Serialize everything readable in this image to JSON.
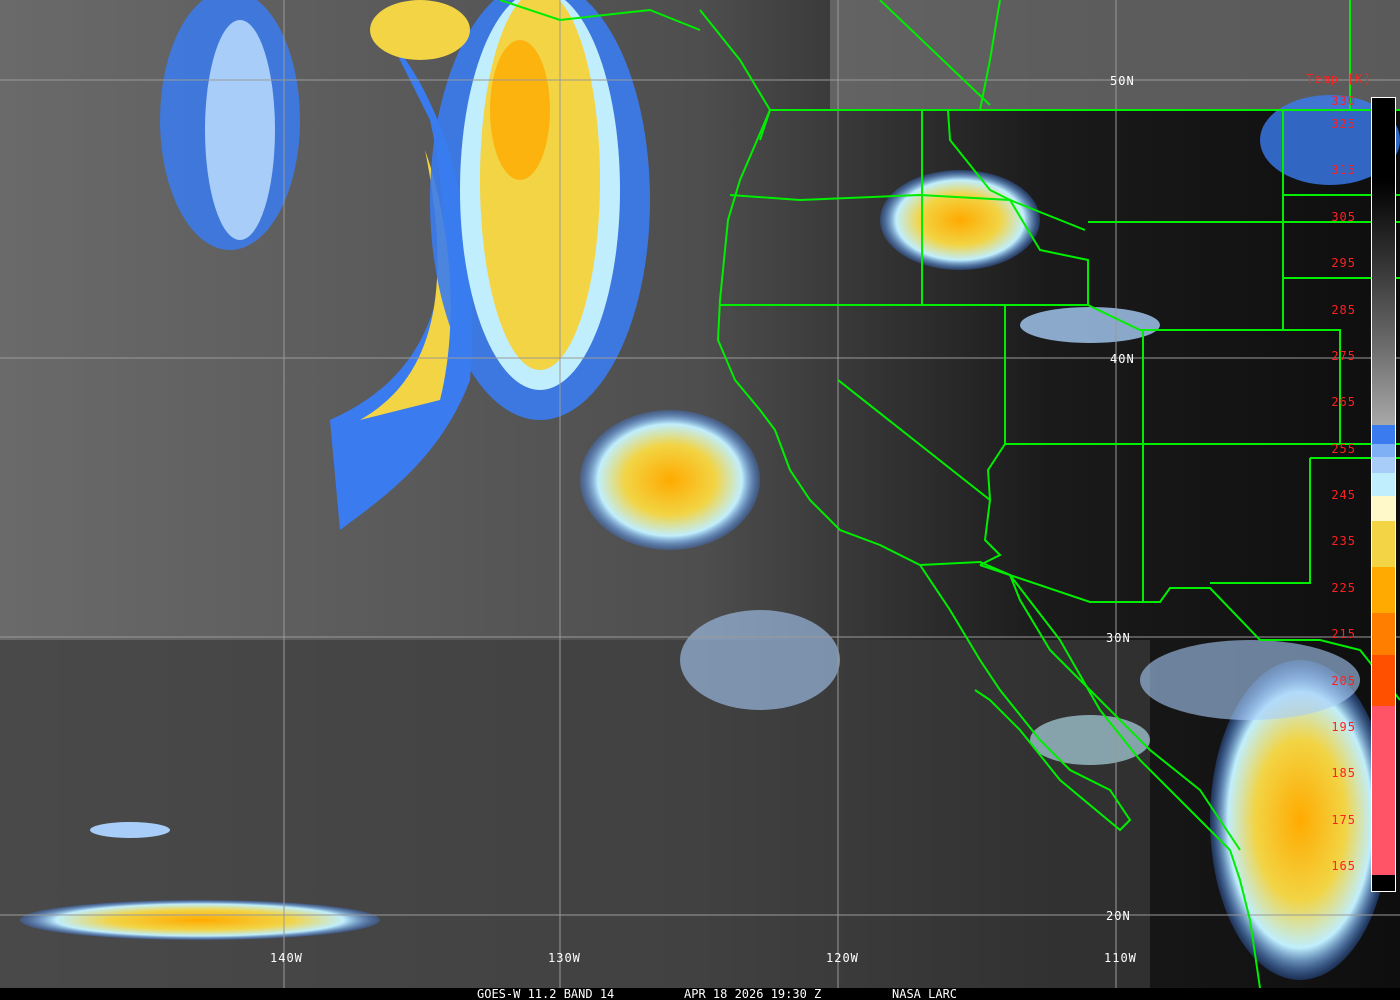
{
  "colorbar": {
    "title": "Temp [K]",
    "ticks": [
      "330",
      "325",
      "315",
      "305",
      "295",
      "285",
      "275",
      "265",
      "255",
      "245",
      "235",
      "225",
      "215",
      "205",
      "195",
      "185",
      "175",
      "165"
    ],
    "segments": [
      {
        "from": 330,
        "to": 257,
        "color": "gradient-black-to-gray"
      },
      {
        "from": 257,
        "to": 253,
        "color": "#3a7cf0"
      },
      {
        "from": 253,
        "to": 250,
        "color": "#7fb0f5"
      },
      {
        "from": 250,
        "to": 247,
        "color": "#a8cdf8"
      },
      {
        "from": 247,
        "to": 242,
        "color": "#c0eefc"
      },
      {
        "from": 242,
        "to": 237,
        "color": "#fff8c8"
      },
      {
        "from": 237,
        "to": 228,
        "color": "#f2d444"
      },
      {
        "from": 228,
        "to": 218,
        "color": "#ffaa00"
      },
      {
        "from": 218,
        "to": 210,
        "color": "#ff7e00"
      },
      {
        "from": 210,
        "to": 199,
        "color": "#ff5000"
      },
      {
        "from": 199,
        "to": 165,
        "color": "#ff5468"
      }
    ]
  },
  "grid": {
    "longitudes": [
      "140W",
      "130W",
      "120W",
      "110W"
    ],
    "latitudes": [
      "50N",
      "40N",
      "30N",
      "20N"
    ]
  },
  "footer": {
    "satellite": "GOES-W 11.2 BAND 14",
    "datetime": "APR 18 2026 19:30 Z",
    "source": "NASA LARC"
  },
  "colors": {
    "borders": "#00ee00",
    "labels": "#ffffff",
    "colorbar_text": "#ff2020"
  }
}
